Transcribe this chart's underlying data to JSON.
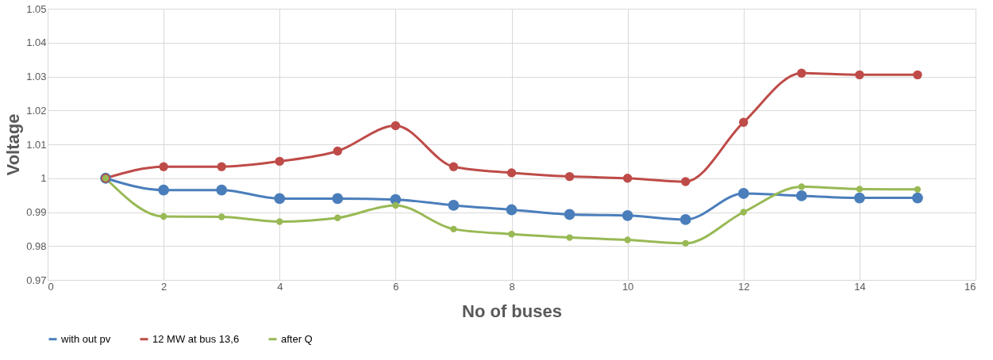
{
  "chart_data": {
    "type": "line",
    "xlabel": "No of buses",
    "ylabel": "Voltage",
    "x": [
      1,
      2,
      3,
      4,
      5,
      6,
      7,
      8,
      9,
      10,
      11,
      12,
      13,
      14,
      15
    ],
    "series": [
      {
        "name": "with out pv",
        "color": "#4a7ebb",
        "values": [
          1.0,
          0.9965,
          0.9965,
          0.994,
          0.994,
          0.9937,
          0.992,
          0.9907,
          0.9893,
          0.989,
          0.9878,
          0.9955,
          0.9948,
          0.9942,
          0.9942
        ]
      },
      {
        "name": "12 MW at bus 13,6",
        "color": "#be4b48",
        "values": [
          1.0,
          1.0034,
          1.0034,
          1.005,
          1.008,
          1.0155,
          1.0034,
          1.0016,
          1.0005,
          1.0,
          0.999,
          1.0165,
          1.031,
          1.0305,
          1.0305
        ]
      },
      {
        "name": "after Q",
        "color": "#98b954",
        "values": [
          1.0,
          0.9887,
          0.9886,
          0.9872,
          0.9883,
          0.992,
          0.985,
          0.9835,
          0.9825,
          0.9818,
          0.9808,
          0.99,
          0.9975,
          0.9968,
          0.9967
        ]
      }
    ],
    "xlim": [
      0,
      16
    ],
    "xticks": [
      0,
      2,
      4,
      6,
      8,
      10,
      12,
      14,
      16
    ],
    "ylim": [
      0.97,
      1.05
    ],
    "yticks": [
      0.97,
      0.98,
      0.99,
      1,
      1.01,
      1.02,
      1.03,
      1.04,
      1.05
    ],
    "grid": true,
    "legend": "bottom",
    "marker": "circle",
    "line_style": "solid"
  }
}
